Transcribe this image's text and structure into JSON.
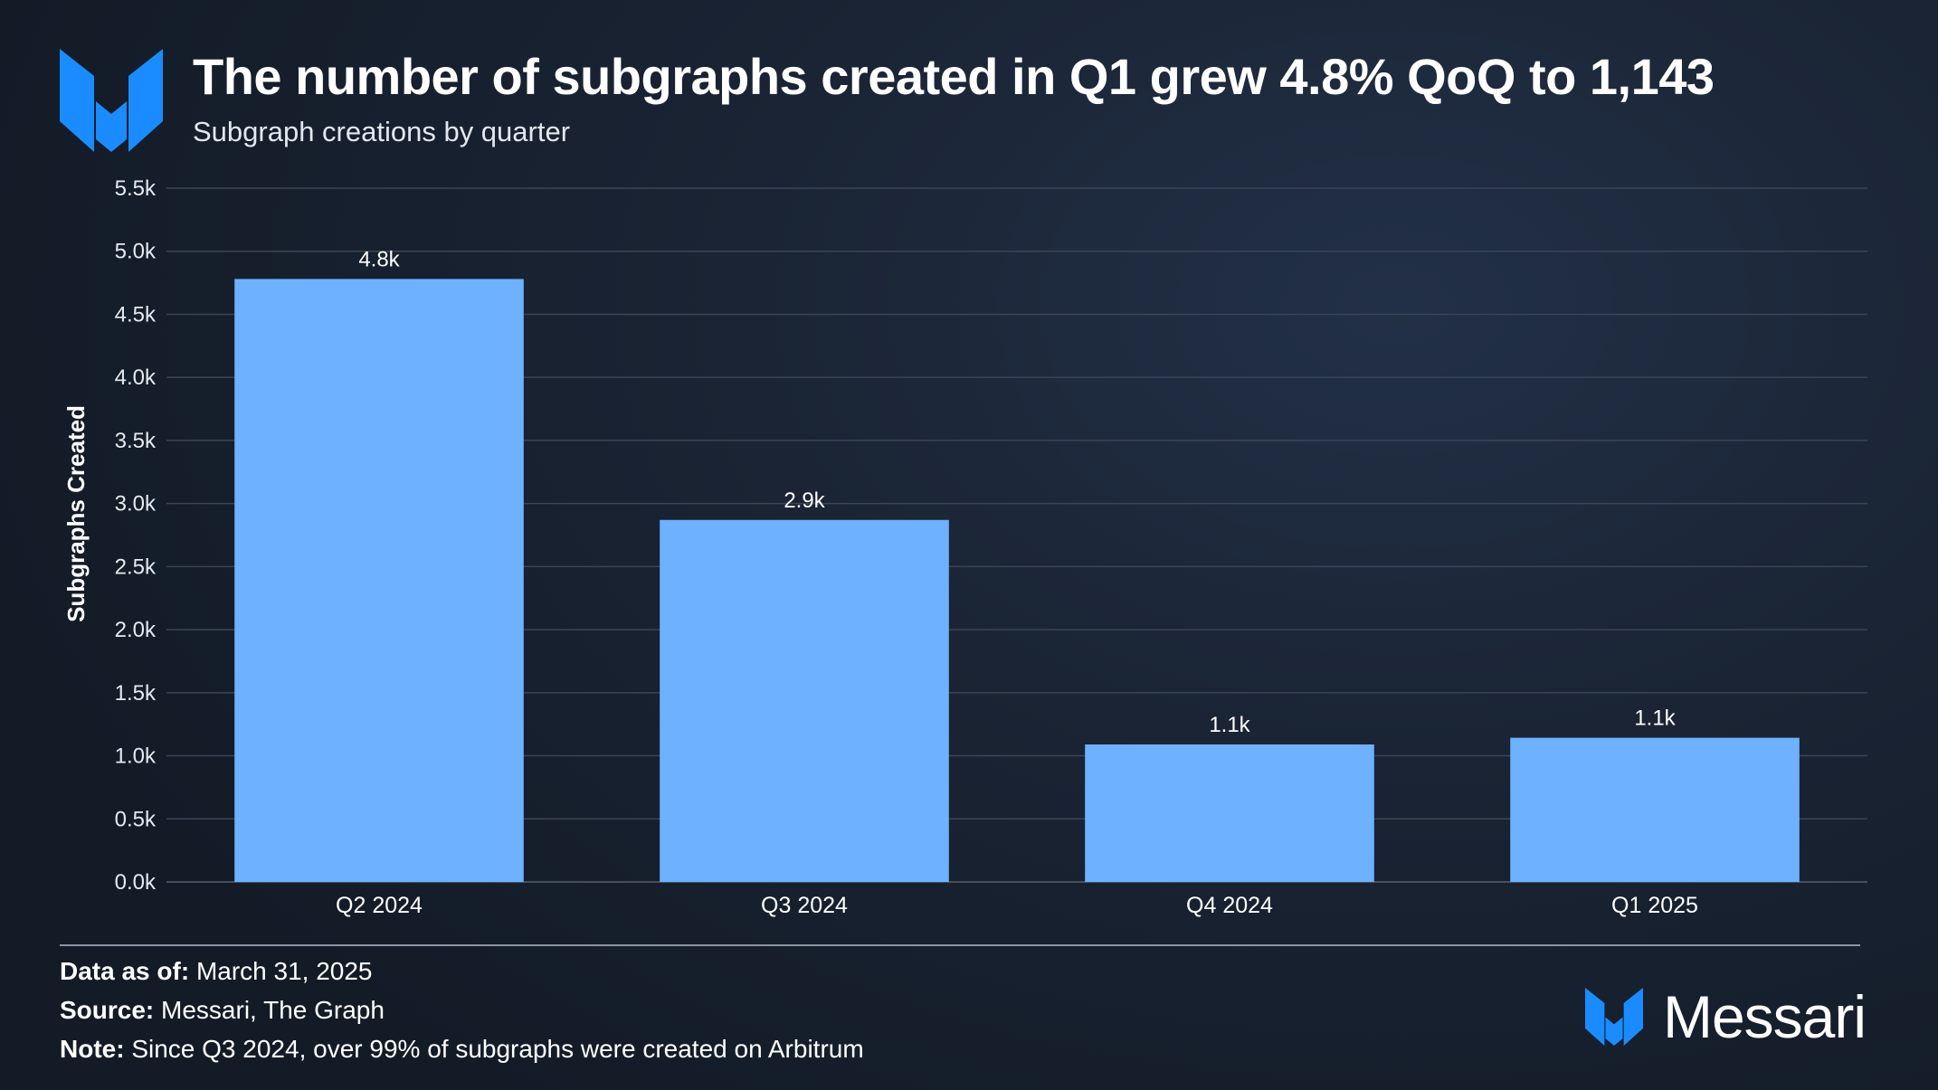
{
  "header": {
    "title": "The number of subgraphs created in Q1 grew 4.8% QoQ to 1,143",
    "subtitle": "Subgraph creations by quarter"
  },
  "chart_data": {
    "type": "bar",
    "categories": [
      "Q2 2024",
      "Q3 2024",
      "Q4 2024",
      "Q1 2025"
    ],
    "values": [
      4780,
      2870,
      1090,
      1143
    ],
    "data_labels": [
      "4.8k",
      "2.9k",
      "1.1k",
      "1.1k"
    ],
    "ylabel": "Subgraphs Created",
    "xlabel": "",
    "ylim": [
      0,
      5500
    ],
    "yticks": [
      0,
      500,
      1000,
      1500,
      2000,
      2500,
      3000,
      3500,
      4000,
      4500,
      5000,
      5500
    ],
    "ytick_labels": [
      "0.0k",
      "0.5k",
      "1.0k",
      "1.5k",
      "2.0k",
      "2.5k",
      "3.0k",
      "3.5k",
      "4.0k",
      "4.5k",
      "5.0k",
      "5.5k"
    ],
    "grid": true,
    "legend": "none",
    "bar_color": "#6db1ff"
  },
  "footer": {
    "date_label": "Data as of:",
    "date_value": "March 31, 2025",
    "source_label": "Source:",
    "source_value": "Messari, The Graph",
    "note_label": "Note:",
    "note_value": "Since Q3 2024, over 99% of subgraphs were created on Arbitrum",
    "brand": "Messari"
  },
  "colors": {
    "accent_blue": "#1a8cff",
    "grid": "#3a4556",
    "bar": "#6db1ff"
  },
  "icons": {
    "header_logo": "messari-logo-icon",
    "footer_logo": "messari-logo-icon"
  }
}
